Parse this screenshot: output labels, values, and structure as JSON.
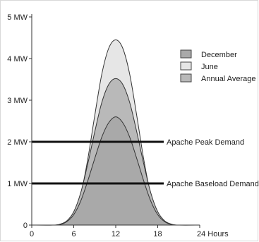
{
  "chart_data": {
    "type": "area",
    "x_unit_label": "Hours",
    "x_ticks": [
      0,
      6,
      12,
      18,
      24
    ],
    "x_tick_labels": [
      "0",
      "6",
      "12",
      "18",
      "24 Hours"
    ],
    "xlim": [
      0,
      24
    ],
    "y_ticks": [
      0,
      1,
      2,
      3,
      4,
      5
    ],
    "y_tick_labels": [
      "0",
      "1 MW",
      "2 MW",
      "3 MW",
      "4 MW",
      "5 MW"
    ],
    "ylim": [
      0,
      5
    ],
    "grid": false,
    "legend_position": "right",
    "x": [
      0,
      3,
      4,
      5,
      6,
      7,
      8,
      9,
      10,
      11,
      12,
      13,
      14,
      15,
      16,
      17,
      18,
      19,
      20,
      21,
      24
    ],
    "series": [
      {
        "name": "June",
        "color": "#e6e6e6",
        "values": [
          0,
          0,
          0.01,
          0.07,
          0.27,
          0.74,
          1.58,
          2.63,
          3.62,
          4.25,
          4.45,
          4.25,
          3.62,
          2.63,
          1.58,
          0.74,
          0.27,
          0.07,
          0.01,
          0,
          0
        ]
      },
      {
        "name": "Annual Average",
        "color": "#b9b9b9",
        "values": [
          0,
          0,
          0.02,
          0.1,
          0.32,
          0.78,
          1.47,
          2.24,
          2.94,
          3.38,
          3.52,
          3.38,
          2.94,
          2.24,
          1.47,
          0.78,
          0.32,
          0.1,
          0.02,
          0,
          0
        ]
      },
      {
        "name": "December",
        "color": "#a9a9a9",
        "values": [
          0,
          0,
          0.01,
          0.08,
          0.25,
          0.58,
          1.06,
          1.6,
          2.11,
          2.46,
          2.6,
          2.46,
          2.11,
          1.6,
          1.06,
          0.58,
          0.25,
          0.08,
          0.01,
          0,
          0
        ]
      }
    ],
    "legend_order": [
      "December",
      "June",
      "Annual Average"
    ],
    "reference_lines": [
      {
        "label": "Apache Peak Demand",
        "y": 2
      },
      {
        "label": "Apache Baseload Demand",
        "y": 1
      }
    ]
  }
}
